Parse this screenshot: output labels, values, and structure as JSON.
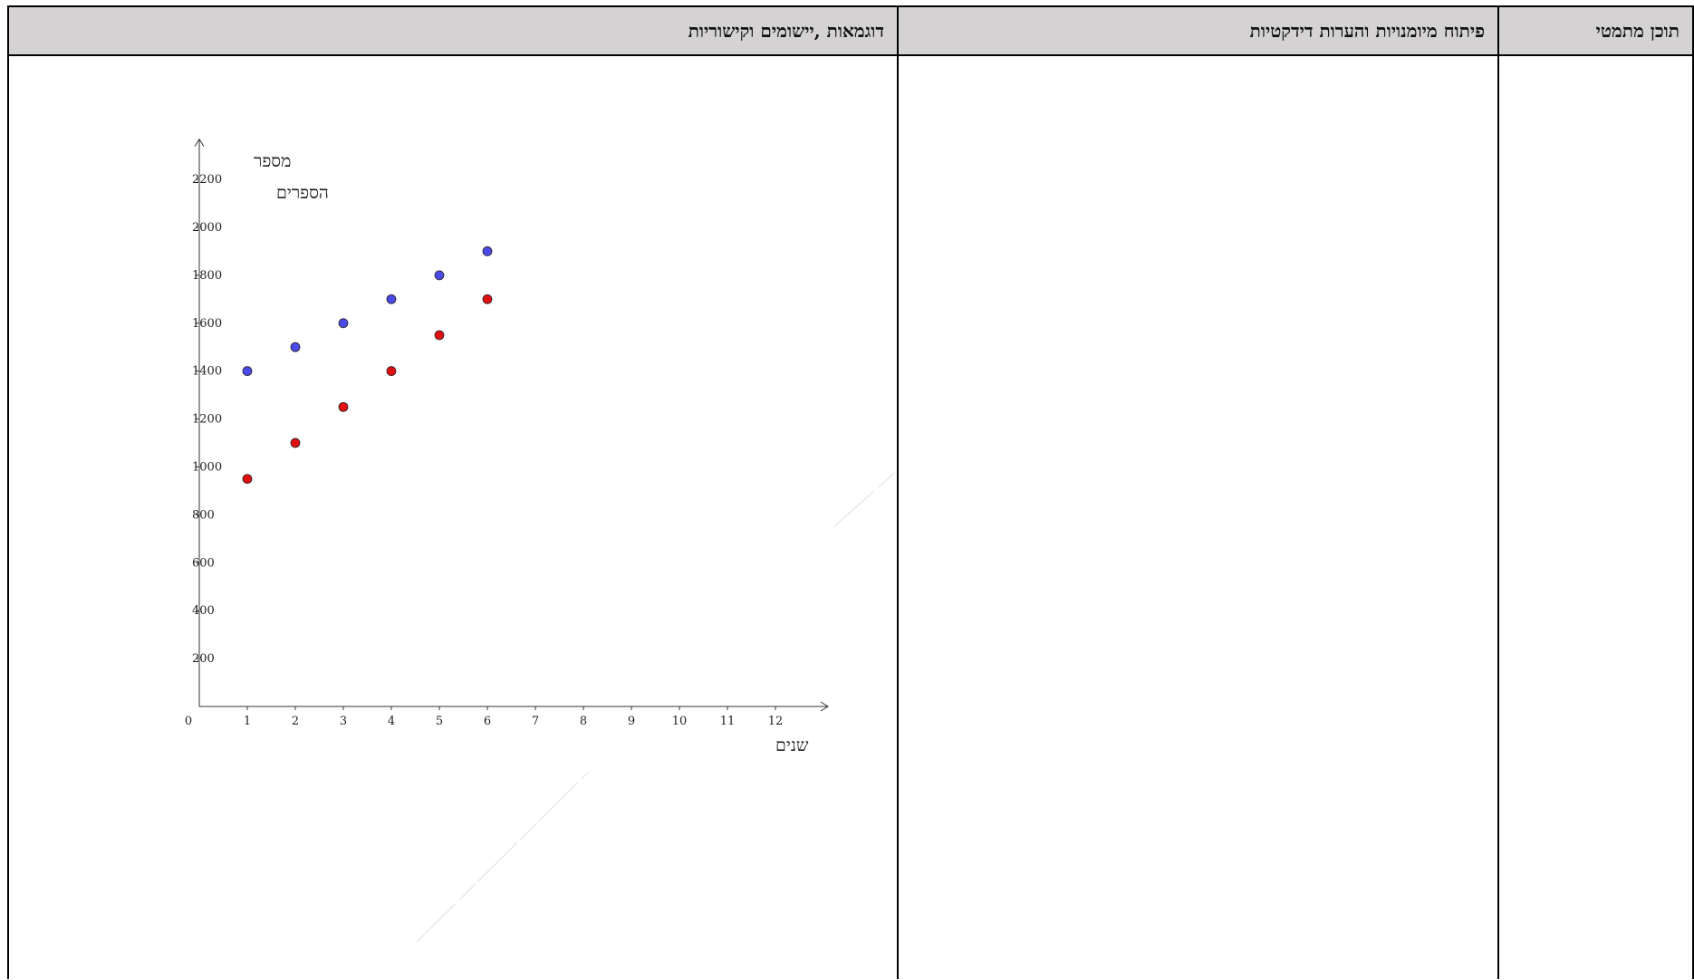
{
  "table": {
    "headers": {
      "content": "תוכן מתמטי",
      "skills": "פיתוח מיומנויות והערות דידקטיות",
      "examples": "דוגמאות ,יישומים וקישוריות"
    }
  },
  "chart_data": {
    "type": "scatter",
    "ylabel_line1": "מספר",
    "ylabel_line2": "הספרים",
    "xlabel": "שנים",
    "xlim": [
      0,
      13
    ],
    "ylim": [
      0,
      2300
    ],
    "x_ticks": [
      1,
      2,
      3,
      4,
      5,
      6,
      7,
      8,
      9,
      10,
      11,
      12
    ],
    "y_ticks": [
      200,
      400,
      600,
      800,
      1000,
      1200,
      1400,
      1600,
      1800,
      2000,
      2200
    ],
    "origin_label": "0",
    "grid": false,
    "series": [
      {
        "color": "#4a4ae6",
        "x": [
          1,
          2,
          3,
          4,
          5,
          6
        ],
        "y": [
          1400,
          1500,
          1600,
          1700,
          1800,
          1900
        ]
      },
      {
        "color": "#e01010",
        "x": [
          1,
          2,
          3,
          4,
          5,
          6
        ],
        "y": [
          950,
          1100,
          1250,
          1400,
          1550,
          1700
        ]
      }
    ]
  }
}
